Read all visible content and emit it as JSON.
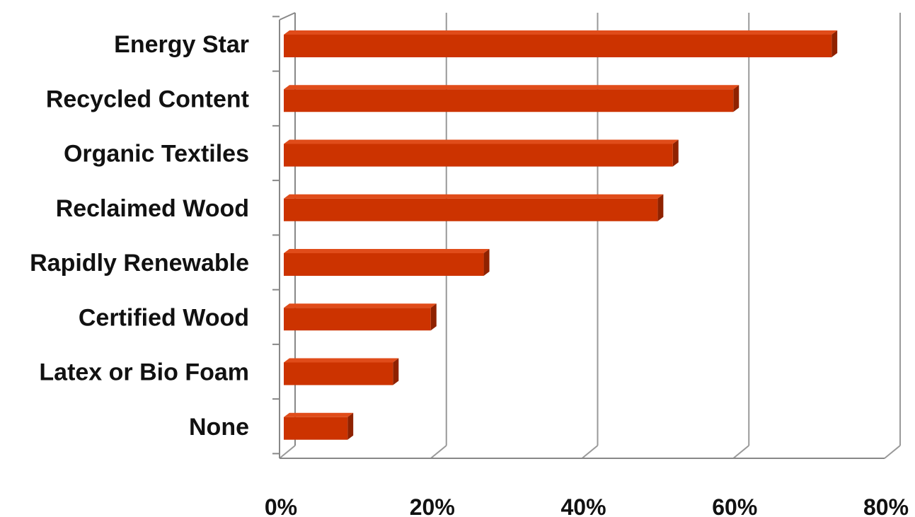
{
  "chart_data": {
    "type": "bar",
    "orientation": "horizontal",
    "style": "3d-clustered-bar",
    "title": "",
    "xlabel": "",
    "ylabel": "",
    "categories": [
      "Energy Star",
      "Recycled Content",
      "Organic Textiles",
      "Reclaimed Wood",
      "Rapidly Renewable",
      "Certified Wood",
      "Latex or Bio Foam",
      "None"
    ],
    "values": [
      73,
      60,
      52,
      50,
      27,
      20,
      15,
      9
    ],
    "xlim": [
      0,
      80
    ],
    "x_ticks": [
      0,
      20,
      40,
      60,
      80
    ],
    "x_tick_labels": [
      "0%",
      "20%",
      "40%",
      "60%",
      "80%"
    ],
    "value_format": "percent",
    "grid": "vertical",
    "legend": "none",
    "colors": {
      "bar_front": "#cc3300",
      "bar_top": "#e04c1a",
      "bar_side": "#8f2200",
      "grid": "#999999",
      "axis": "#888888",
      "text": "#111111"
    }
  }
}
